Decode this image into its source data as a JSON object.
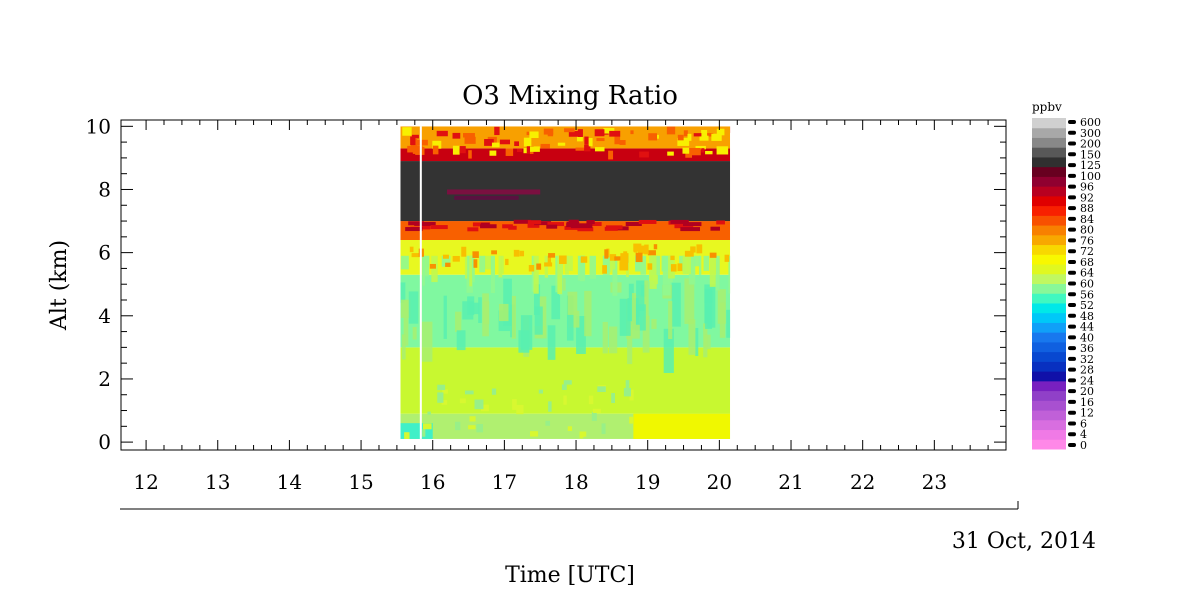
{
  "chart_data": {
    "type": "heatmap",
    "title": "O3 Mixing Ratio",
    "xlabel": "Time [UTC]",
    "ylabel": "Alt (km)",
    "date_label": "31 Oct, 2014",
    "x_ticks": [
      "12",
      "13",
      "14",
      "15",
      "16",
      "17",
      "18",
      "19",
      "20",
      "21",
      "22",
      "23"
    ],
    "x_tick_values": [
      12,
      13,
      14,
      15,
      16,
      17,
      18,
      19,
      20,
      21,
      22,
      23
    ],
    "xlim": [
      11.65,
      24.0
    ],
    "y_ticks": [
      "0",
      "2",
      "4",
      "6",
      "8",
      "10"
    ],
    "y_tick_values": [
      0,
      2,
      4,
      6,
      8,
      10
    ],
    "ylim": [
      -0.25,
      10.2
    ],
    "data_time_range": [
      15.55,
      20.15
    ],
    "data_alt_range": [
      0.1,
      10.0
    ],
    "gap_time": 15.82,
    "layers": [
      {
        "alt_min": 0.1,
        "alt_max": 0.9,
        "ppbv": "56-60",
        "note": "surface layer, yellow near 19-20 UTC"
      },
      {
        "alt_min": 0.9,
        "alt_max": 3.0,
        "ppbv": "56-60"
      },
      {
        "alt_min": 3.0,
        "alt_max": 5.3,
        "ppbv": "48-56"
      },
      {
        "alt_min": 5.3,
        "alt_max": 6.4,
        "ppbv": "60-72"
      },
      {
        "alt_min": 6.4,
        "alt_max": 7.0,
        "ppbv": "76-100"
      },
      {
        "alt_min": 7.0,
        "alt_max": 8.9,
        "ppbv": "100-125"
      },
      {
        "alt_min": 8.9,
        "alt_max": 9.3,
        "ppbv": "76-100"
      },
      {
        "alt_min": 9.3,
        "alt_max": 10.0,
        "ppbv": "64-76"
      }
    ],
    "colorbar": {
      "unit": "ppbv",
      "labels": [
        "0",
        "4",
        "6",
        "12",
        "16",
        "20",
        "24",
        "28",
        "32",
        "36",
        "40",
        "44",
        "48",
        "52",
        "56",
        "60",
        "64",
        "68",
        "72",
        "76",
        "80",
        "84",
        "88",
        "92",
        "96",
        "100",
        "125",
        "150",
        "200",
        "300",
        "600"
      ],
      "colors": [
        "#ff88e8",
        "#f07ae6",
        "#d86ee0",
        "#c060d8",
        "#a850d0",
        "#9040c8",
        "#7820c0",
        "#1010a8",
        "#0830c0",
        "#0848d0",
        "#1060e0",
        "#1878ee",
        "#10a0f8",
        "#00c8f8",
        "#00e8e8",
        "#40f8c0",
        "#88f898",
        "#c0f860",
        "#e0f820",
        "#f8f800",
        "#f8d800",
        "#f8a800",
        "#f88000",
        "#f85000",
        "#f82000",
        "#e00000",
        "#b80020",
        "#900030",
        "#680020",
        "#303030",
        "#585858",
        "#888888",
        "#a8a8a8",
        "#d0d0d0"
      ]
    }
  }
}
